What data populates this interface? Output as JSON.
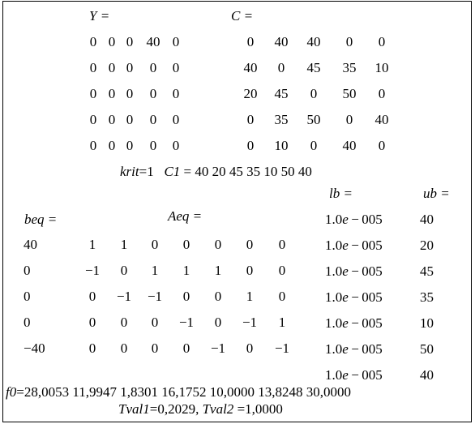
{
  "Y": {
    "label": "Y =",
    "rows": [
      [
        "0",
        "0",
        "0",
        "40",
        "0"
      ],
      [
        "0",
        "0",
        "0",
        "0",
        "0"
      ],
      [
        "0",
        "0",
        "0",
        "0",
        "0"
      ],
      [
        "0",
        "0",
        "0",
        "0",
        "0"
      ],
      [
        "0",
        "0",
        "0",
        "0",
        "0"
      ]
    ]
  },
  "C": {
    "label": "C =",
    "rows": [
      [
        "0",
        "40",
        "40",
        "0",
        "0"
      ],
      [
        "40",
        "0",
        "45",
        "35",
        "10"
      ],
      [
        "20",
        "45",
        "0",
        "50",
        "0"
      ],
      [
        "0",
        "35",
        "50",
        "0",
        "40"
      ],
      [
        "0",
        "10",
        "0",
        "40",
        "0"
      ]
    ]
  },
  "krit_line": {
    "krit_label": "krit",
    "krit_value": "=1",
    "c1_label": "C1",
    "c1_value": "= 40 20 45 35 10 50 40"
  },
  "lb": {
    "label": "lb =",
    "values": [
      "1.0e − 005",
      "1.0e − 005",
      "1.0e − 005",
      "1.0e − 005",
      "1.0e − 005",
      "1.0e − 005",
      "1.0e − 005"
    ]
  },
  "ub": {
    "label": "ub =",
    "values": [
      "40",
      "20",
      "45",
      "35",
      "10",
      "50",
      "40"
    ]
  },
  "beq": {
    "label": "beq =",
    "values": [
      "40",
      "0",
      "0",
      "0",
      "−40"
    ]
  },
  "Aeq": {
    "label": "Aeq =",
    "rows": [
      [
        "1",
        "1",
        "0",
        "0",
        "0",
        "0",
        "0"
      ],
      [
        "−1",
        "0",
        "1",
        "1",
        "1",
        "0",
        "0"
      ],
      [
        "0",
        "−1",
        "−1",
        "0",
        "0",
        "1",
        "0"
      ],
      [
        "0",
        "0",
        "0",
        "−1",
        "0",
        "−1",
        "1"
      ],
      [
        "0",
        "0",
        "0",
        "0",
        "−1",
        "0",
        "−1"
      ]
    ]
  },
  "f0": {
    "label": "f0",
    "text": "=28,0053 11,9947 1,8301 16,1752 10,0000 13,8248 30,0000"
  },
  "tval": {
    "tval1_label": "Tval1",
    "tval1_value": "=0,2029,",
    "tval2_label": "Tval2",
    "tval2_value": "=1,0000"
  }
}
